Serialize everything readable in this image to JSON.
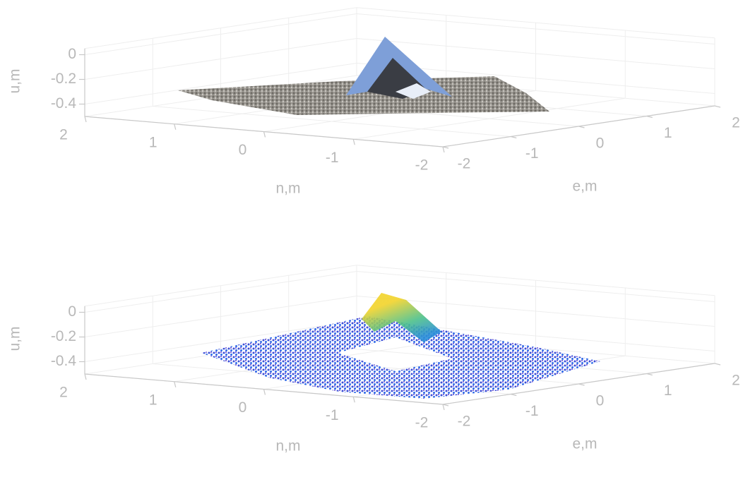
{
  "chart_data": [
    {
      "type": "scatter3d",
      "xlabel": "n,m",
      "ylabel": "e,m",
      "zlabel": "u,m",
      "xlim": [
        2,
        -2
      ],
      "xticks": [
        2,
        1,
        0,
        -1,
        -2
      ],
      "ylim": [
        -2,
        2
      ],
      "yticks": [
        -2,
        -1,
        0,
        1,
        2
      ],
      "zlim": [
        -0.5,
        0.05
      ],
      "zticks": [
        -0.4,
        -0.2,
        0
      ],
      "grid": true
    },
    {
      "type": "scatter3d",
      "xlabel": "n,m",
      "ylabel": "e,m",
      "zlabel": "u,m",
      "xlim": [
        2,
        -2
      ],
      "xticks": [
        2,
        1,
        0,
        -1,
        -2
      ],
      "ylim": [
        -2,
        2
      ],
      "yticks": [
        -2,
        -1,
        0,
        1,
        2
      ],
      "zlim": [
        -0.5,
        0.05
      ],
      "zticks": [
        -0.4,
        -0.2,
        0
      ],
      "grid": true
    }
  ]
}
